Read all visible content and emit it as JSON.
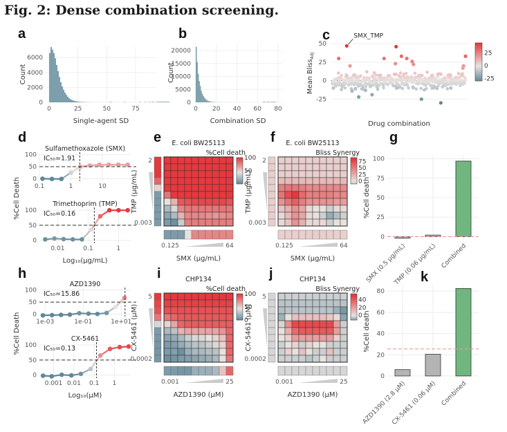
{
  "title": "Fig. 2: Dense combination screening.",
  "panel_labels": {
    "a": "a",
    "b": "b",
    "c": "c",
    "d": "d",
    "e": "e",
    "f": "f",
    "g": "g",
    "h": "h",
    "i": "i",
    "j": "j",
    "k": "k"
  },
  "colors": {
    "blue": "#6f93a4",
    "grey": "#d8d8d8",
    "red": "#e8454a",
    "green": "#72b67f",
    "hist": "#7d9eab",
    "bar_grey": "#b4b4b4",
    "ref_line": "#e89a9a"
  },
  "chart_data": [
    {
      "id": "a",
      "type": "bar",
      "subtype": "histogram",
      "xlabel": "Single-agent SD",
      "ylabel": "Count",
      "xlim": [
        -3,
        93
      ],
      "ylim": [
        0,
        7500
      ],
      "xticks": [
        0,
        25,
        50,
        75
      ],
      "yticks": [
        0,
        2000,
        4000,
        6000
      ],
      "bin_width": 1.2,
      "values": [
        6600,
        7400,
        7050,
        6600,
        5900,
        5000,
        4200,
        3400,
        2700,
        2150,
        1700,
        1300,
        1000,
        760,
        560,
        420,
        320,
        240,
        180,
        140,
        110,
        85,
        65,
        50,
        40,
        32,
        26,
        20,
        16,
        13,
        10,
        8,
        7,
        6,
        5,
        4,
        4,
        3,
        3,
        2,
        2,
        2,
        2,
        2,
        80,
        2,
        2,
        2,
        2,
        2,
        2,
        2,
        2,
        2,
        60,
        2,
        2,
        2,
        2,
        2,
        2,
        2,
        2,
        2,
        2,
        60,
        2,
        2,
        2,
        60,
        2,
        2,
        60,
        2,
        60,
        60,
        2,
        60,
        60,
        80,
        80,
        80,
        80,
        80,
        80,
        80,
        80
      ]
    },
    {
      "id": "b",
      "type": "bar",
      "subtype": "histogram",
      "xlabel": "Combination SD",
      "ylabel": "Count",
      "xlim": [
        -2,
        84
      ],
      "ylim": [
        0,
        23000
      ],
      "xticks": [
        0,
        20,
        40,
        60,
        80
      ],
      "yticks": [
        0,
        5000,
        10000,
        15000,
        20000
      ],
      "bin_width": 1,
      "values": [
        21500,
        15600,
        11000,
        8200,
        6300,
        4400,
        3300,
        2400,
        1800,
        1300,
        950,
        700,
        500,
        370,
        270,
        200,
        150,
        110,
        80,
        60,
        45,
        35,
        27,
        20,
        15,
        12,
        9,
        7,
        6,
        5,
        4,
        3,
        3,
        2,
        2,
        2,
        2,
        2,
        2,
        2,
        2,
        2,
        2,
        2,
        2,
        2,
        2,
        2,
        2,
        2,
        2,
        2,
        2,
        2,
        2,
        2,
        2,
        2,
        2,
        2,
        2,
        2,
        2,
        2,
        2,
        200,
        200,
        200,
        2,
        200,
        200,
        200,
        2,
        200,
        200,
        200,
        200,
        200
      ]
    },
    {
      "id": "c",
      "type": "scatter",
      "xlabel": "Drug combination",
      "ylabel": "Mean Blissₐdj",
      "ylabel_main": "Mean Bliss",
      "ylabel_sub": "Adj",
      "ylim": [
        -33,
        53
      ],
      "yticks": [
        -25,
        0,
        25,
        50
      ],
      "annotation": {
        "label": "SMX_TMP",
        "x": 22,
        "y": 47
      },
      "legend": {
        "ticks": [
          25,
          0,
          -25
        ],
        "range": [
          -30,
          45
        ],
        "placement": "right"
      },
      "n_points": 200,
      "highlight_points": [
        [
          22,
          47
        ],
        [
          10,
          30
        ],
        [
          27,
          20
        ],
        [
          78,
          30
        ],
        [
          96,
          46
        ],
        [
          95,
          23
        ],
        [
          104,
          33
        ],
        [
          112,
          30
        ],
        [
          120,
          26
        ],
        [
          122,
          22
        ],
        [
          134,
          -25
        ],
        [
          163,
          -30
        ],
        [
          200,
          33
        ],
        [
          197,
          20
        ],
        [
          196,
          17
        ],
        [
          40,
          -22
        ],
        [
          50,
          -13
        ],
        [
          60,
          -19
        ],
        [
          30,
          -14
        ],
        [
          2,
          -10
        ],
        [
          35,
          -11
        ],
        [
          97,
          -10
        ],
        [
          178,
          -10
        ]
      ]
    },
    {
      "id": "d",
      "type": "line",
      "subtype": "dose-response",
      "ylabel": "%Cell Death",
      "xlabel": "Log₁₀(μg/mL)",
      "panels": [
        {
          "title": "Sulfamethoxazole (SMX)",
          "ic50_label": "IC₅₀=1.91",
          "ic50": 1.91,
          "xlog": [
            -1,
            1.9
          ],
          "xticks": [
            "0.1",
            "1",
            "10"
          ],
          "xtick_vals": [
            0.1,
            1,
            10
          ],
          "x": [
            0.125,
            0.25,
            0.5,
            1,
            2,
            4,
            8,
            16,
            32,
            64
          ],
          "y": [
            0,
            -1,
            -1,
            25,
            50,
            55,
            58,
            58,
            58,
            58
          ]
        },
        {
          "title": "Trimethoprim (TMP)",
          "ic50_label": "IC₅₀=0.16",
          "ic50": 0.16,
          "xlog": [
            -2.6,
            0.4
          ],
          "xticks": [
            "0.01",
            "0.1",
            "1"
          ],
          "xtick_vals": [
            0.01,
            0.1,
            1
          ],
          "x": [
            0.0039,
            0.0078,
            0.0156,
            0.03125,
            0.0625,
            0.125,
            0.25,
            0.5,
            1,
            2
          ],
          "y": [
            3,
            6,
            4,
            3,
            3,
            35,
            80,
            100,
            100,
            100
          ]
        }
      ],
      "yticks": [
        0,
        50,
        100
      ]
    },
    {
      "id": "e",
      "type": "heatmap",
      "title": "E. coli BW25113",
      "legend_title": "%Cell death",
      "xlabel": "SMX (μg/mL)",
      "ylabel": "TMP (μg/mL)",
      "x_min_label": "0.125",
      "x_max_label": "64",
      "y_max_label": "2",
      "y_min_label": "0.003",
      "legend_ticks": [
        100,
        50,
        0
      ],
      "scale": "celldeath",
      "single_y": [
        100,
        100,
        100,
        85,
        50,
        10,
        10,
        10,
        10,
        10
      ],
      "single_x": [
        10,
        10,
        10,
        45,
        75,
        75,
        75,
        75,
        75,
        75
      ],
      "matrix": [
        [
          100,
          100,
          100,
          100,
          100,
          100,
          100,
          100,
          100,
          100
        ],
        [
          100,
          100,
          100,
          100,
          100,
          100,
          100,
          100,
          100,
          100
        ],
        [
          100,
          100,
          100,
          100,
          100,
          100,
          100,
          100,
          100,
          100
        ],
        [
          100,
          100,
          100,
          100,
          100,
          100,
          100,
          100,
          100,
          100
        ],
        [
          100,
          100,
          100,
          100,
          100,
          100,
          100,
          100,
          100,
          100
        ],
        [
          80,
          100,
          100,
          100,
          100,
          100,
          100,
          100,
          100,
          100
        ],
        [
          45,
          60,
          90,
          92,
          95,
          95,
          95,
          95,
          95,
          92
        ],
        [
          25,
          40,
          75,
          80,
          80,
          80,
          80,
          80,
          80,
          80
        ],
        [
          15,
          25,
          60,
          75,
          75,
          75,
          72,
          70,
          72,
          75
        ],
        [
          10,
          5,
          35,
          78,
          78,
          78,
          78,
          78,
          78,
          78
        ]
      ]
    },
    {
      "id": "f",
      "type": "heatmap",
      "title": "E. coli BW25113",
      "legend_title": "Bliss Synergy",
      "xlabel": "SMX (μg/mL)",
      "ylabel": "TMP (μg/mL)",
      "x_min_label": "0.125",
      "x_max_label": "64",
      "y_max_label": "2",
      "y_min_label": "0.003",
      "legend_ticks": [
        75,
        50,
        25,
        0
      ],
      "scale": "bliss_f",
      "single_y": [
        10,
        10,
        10,
        10,
        10,
        10,
        10,
        10,
        10,
        10
      ],
      "single_x": [
        10,
        10,
        10,
        10,
        10,
        10,
        10,
        10,
        10,
        10
      ],
      "matrix": [
        [
          10,
          10,
          10,
          10,
          10,
          10,
          10,
          10,
          10,
          10
        ],
        [
          10,
          10,
          10,
          10,
          10,
          10,
          10,
          10,
          10,
          10
        ],
        [
          10,
          10,
          10,
          10,
          10,
          10,
          10,
          10,
          10,
          10
        ],
        [
          20,
          20,
          20,
          20,
          20,
          20,
          20,
          20,
          20,
          20
        ],
        [
          50,
          55,
          55,
          50,
          45,
          45,
          45,
          45,
          45,
          45
        ],
        [
          55,
          75,
          85,
          60,
          50,
          50,
          50,
          50,
          45,
          45
        ],
        [
          40,
          55,
          65,
          50,
          40,
          40,
          40,
          40,
          35,
          35
        ],
        [
          15,
          25,
          40,
          30,
          5,
          0,
          0,
          -5,
          5,
          5
        ],
        [
          5,
          20,
          40,
          30,
          5,
          0,
          -5,
          -15,
          -10,
          -5
        ],
        [
          5,
          15,
          40,
          25,
          5,
          5,
          5,
          -5,
          0,
          0
        ]
      ]
    },
    {
      "id": "g",
      "type": "bar",
      "ylabel": "%Cell death",
      "categories": [
        "SMX (0.5 μg/mL)",
        "TMP (0.06 μg/mL)",
        "Combined"
      ],
      "values": [
        -2,
        2,
        97
      ],
      "ylim": [
        -5,
        105
      ],
      "yticks": [
        0,
        25,
        50,
        75,
        100
      ],
      "reference_line": 0
    },
    {
      "id": "h",
      "type": "line",
      "subtype": "dose-response",
      "ylabel": "%Cell Death",
      "xlabel": "Log₁₀(μM)",
      "panels": [
        {
          "title": "AZD1390",
          "ic50_label": "IC₅₀=15.86",
          "ic50": 15.86,
          "xlog": [
            -3.3,
            1.5
          ],
          "xticks": [
            "1e-03",
            "1e-01",
            "1e+01"
          ],
          "xtick_vals": [
            0.001,
            0.1,
            10
          ],
          "x": [
            0.00076,
            0.0023,
            0.0069,
            0.02,
            0.062,
            0.19,
            0.56,
            1.7,
            5,
            15,
            25
          ],
          "y": [
            -5,
            -4,
            -3,
            -2,
            4,
            2,
            1,
            5,
            30,
            68,
            70
          ],
          "n_show": 10
        },
        {
          "title": "CX-5461",
          "ic50_label": "IC₅₀=0.13",
          "ic50": 0.13,
          "xlog": [
            -3.7,
            0.8
          ],
          "xticks": [
            "0.001",
            "0.01",
            "0.1",
            "1"
          ],
          "xtick_vals": [
            0.001,
            0.01,
            0.1,
            1
          ],
          "x": [
            0.0003,
            0.0008,
            0.0025,
            0.0075,
            0.022,
            0.066,
            0.2,
            0.6,
            1.8,
            5
          ],
          "y": [
            -2,
            -4,
            1,
            -1,
            4,
            20,
            65,
            87,
            93,
            95
          ]
        }
      ],
      "yticks": [
        0,
        50,
        100
      ]
    },
    {
      "id": "i",
      "type": "heatmap",
      "title": "CHP134",
      "legend_title": "%Cell death",
      "xlabel": "AZD1390 (μM)",
      "ylabel": "CX-5461 (μM)",
      "x_min_label": "0.001",
      "x_max_label": "25",
      "y_max_label": "5",
      "y_min_label": "0.0002",
      "legend_ticks": [
        100,
        50,
        0
      ],
      "scale": "celldeath",
      "single_y": [
        100,
        95,
        92,
        80,
        40,
        10,
        8,
        8,
        8,
        8
      ],
      "single_x": [
        10,
        10,
        8,
        8,
        20,
        20,
        20,
        25,
        55,
        85
      ],
      "matrix": [
        [
          100,
          100,
          100,
          100,
          100,
          100,
          100,
          100,
          100,
          100
        ],
        [
          97,
          97,
          97,
          97,
          97,
          97,
          97,
          97,
          97,
          97
        ],
        [
          92,
          92,
          92,
          92,
          92,
          92,
          92,
          92,
          92,
          92
        ],
        [
          80,
          85,
          90,
          90,
          90,
          90,
          90,
          90,
          90,
          90
        ],
        [
          50,
          65,
          85,
          88,
          88,
          88,
          88,
          88,
          88,
          88
        ],
        [
          25,
          30,
          60,
          65,
          65,
          65,
          65,
          65,
          70,
          85
        ],
        [
          15,
          18,
          25,
          35,
          40,
          40,
          45,
          50,
          55,
          85
        ],
        [
          10,
          12,
          18,
          25,
          30,
          30,
          35,
          40,
          50,
          85
        ],
        [
          10,
          12,
          5,
          20,
          25,
          25,
          28,
          30,
          45,
          85
        ],
        [
          5,
          8,
          10,
          12,
          15,
          18,
          20,
          25,
          45,
          80
        ]
      ]
    },
    {
      "id": "j",
      "type": "heatmap",
      "title": "CHP134",
      "legend_title": "Bliss Synergy",
      "xlabel": "AZD1390 (μM)",
      "ylabel": "CX-5461 (μM)",
      "x_min_label": "0.001",
      "x_max_label": "25",
      "y_max_label": "5",
      "y_min_label": "0.0002",
      "legend_ticks": [
        40,
        20,
        0
      ],
      "scale": "bliss_j",
      "single_y": [
        -2,
        -2,
        -2,
        -2,
        -2,
        -2,
        -2,
        -2,
        -2,
        -2
      ],
      "single_x": [
        -2,
        -2,
        -2,
        -2,
        -2,
        -2,
        -2,
        -2,
        -2,
        -2
      ],
      "matrix": [
        [
          -3,
          -3,
          -3,
          -3,
          -3,
          -3,
          -3,
          -3,
          -3,
          -3
        ],
        [
          -5,
          -5,
          -5,
          -5,
          -5,
          -5,
          -5,
          -5,
          -5,
          -5
        ],
        [
          -6,
          -5,
          -5,
          -5,
          -5,
          -5,
          -5,
          -5,
          -8,
          -12
        ],
        [
          -8,
          0,
          10,
          10,
          10,
          10,
          10,
          8,
          2,
          -10
        ],
        [
          -2,
          25,
          45,
          45,
          45,
          45,
          45,
          45,
          20,
          -3
        ],
        [
          0,
          15,
          35,
          40,
          40,
          40,
          40,
          40,
          20,
          -3
        ],
        [
          0,
          5,
          20,
          20,
          20,
          20,
          20,
          20,
          5,
          -3
        ],
        [
          -3,
          0,
          5,
          -3,
          5,
          0,
          0,
          -3,
          -3,
          -3
        ],
        [
          -3,
          5,
          0,
          10,
          0,
          -3,
          -3,
          10,
          -3,
          -3
        ],
        [
          -3,
          -3,
          -3,
          -3,
          -5,
          -3,
          0,
          -3,
          -3,
          -3
        ]
      ]
    },
    {
      "id": "k",
      "type": "bar",
      "ylabel": "%Cell death",
      "categories": [
        "AZD1390 (2.8 μM)",
        "CX-5461 (0.06 μM)",
        "Combined"
      ],
      "values": [
        6,
        20.5,
        82.5
      ],
      "ylim": [
        -2,
        86
      ],
      "yticks": [
        0,
        20,
        40,
        60,
        80
      ],
      "reference_line": 25.5
    }
  ]
}
